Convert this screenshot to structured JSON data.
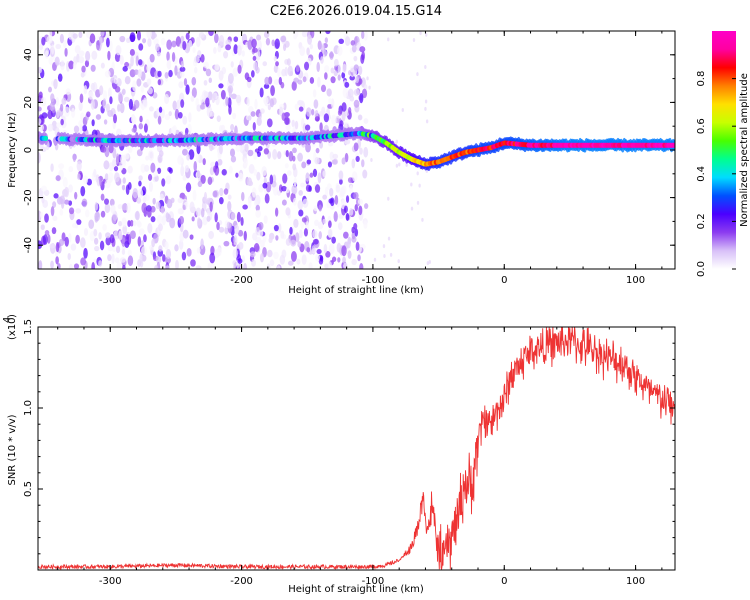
{
  "title": "C2E6.2026.019.04.15.G14",
  "chart_data": [
    {
      "type": "heatmap",
      "name": "spectrogram",
      "xlabel": "Height of straight line (km)",
      "ylabel": "Frequency (Hz)",
      "xlim": [
        -355,
        130
      ],
      "ylim": [
        -50,
        50
      ],
      "xticks": [
        -300,
        -200,
        -100,
        0,
        100
      ],
      "xtick_labels": [
        "-300",
        "-200",
        "-100",
        "0",
        "100"
      ],
      "yticks": [
        -40,
        -20,
        0,
        20,
        40
      ],
      "ytick_labels": [
        "-40",
        "-20",
        "0",
        "20",
        "40"
      ],
      "colorbar": {
        "label": "Normalized spectral amplitude",
        "range": [
          0,
          1
        ],
        "ticks": [
          0.0,
          0.2,
          0.4,
          0.6,
          0.8
        ],
        "tick_labels": [
          "0.0",
          "0.2",
          "0.4",
          "0.6",
          "0.8"
        ],
        "colors": [
          "#ffffff",
          "#d8c0f8",
          "#8c3cf0",
          "#4b00ff",
          "#0050ff",
          "#00dcff",
          "#00ff90",
          "#48ff00",
          "#c8ff00",
          "#ffe000",
          "#ff8000",
          "#ff0000",
          "#ff00a0",
          "#ff00c8"
        ]
      },
      "signal_track": {
        "description_points_x": [
          -355,
          -300,
          -250,
          -200,
          -150,
          -110,
          -100,
          -90,
          -80,
          -70,
          -60,
          -50,
          -40,
          -30,
          -20,
          -10,
          0,
          20,
          50,
          80,
          100,
          130
        ],
        "frequency_hz": [
          5,
          4,
          4,
          5,
          5,
          7,
          6,
          3,
          -1,
          -4,
          -6,
          -5,
          -3,
          -1,
          0,
          1,
          3,
          2,
          2,
          2,
          2,
          2
        ],
        "amplitude": [
          0.25,
          0.3,
          0.3,
          0.3,
          0.3,
          0.35,
          0.45,
          0.55,
          0.6,
          0.65,
          0.75,
          0.8,
          0.8,
          0.8,
          0.85,
          0.85,
          0.85,
          0.9,
          0.95,
          0.95,
          0.95,
          0.95
        ]
      },
      "noise_region_x": [
        -355,
        -105
      ]
    },
    {
      "type": "line",
      "name": "snr",
      "xlabel": "Height of straight line (km)",
      "ylabel": "SNR (10 * v/v)",
      "exponent_label": "(x10",
      "exponent_power": "4",
      "exponent_close": ")",
      "xlim": [
        -355,
        130
      ],
      "ylim": [
        0,
        1.5
      ],
      "xticks": [
        -300,
        -200,
        -100,
        0,
        100
      ],
      "xtick_labels": [
        "-300",
        "-200",
        "-100",
        "0",
        "100"
      ],
      "yticks": [
        0.5,
        1.0,
        1.5
      ],
      "ytick_labels": [
        "0.5",
        "1.0",
        "1.5"
      ],
      "line_color": "#ee3333",
      "series": [
        {
          "name": "SNR",
          "x": [
            -355,
            -300,
            -250,
            -200,
            -150,
            -110,
            -100,
            -90,
            -80,
            -75,
            -70,
            -65,
            -62,
            -58,
            -55,
            -52,
            -50,
            -45,
            -40,
            -35,
            -30,
            -25,
            -20,
            -15,
            -10,
            -5,
            0,
            5,
            10,
            20,
            30,
            40,
            50,
            60,
            70,
            80,
            90,
            100,
            110,
            120,
            130
          ],
          "y": [
            0.02,
            0.02,
            0.03,
            0.02,
            0.02,
            0.02,
            0.02,
            0.03,
            0.06,
            0.1,
            0.15,
            0.3,
            0.45,
            0.25,
            0.4,
            0.2,
            0.12,
            0.1,
            0.2,
            0.35,
            0.55,
            0.5,
            0.8,
            0.95,
            0.9,
            1.0,
            1.05,
            1.2,
            1.25,
            1.35,
            1.38,
            1.4,
            1.42,
            1.38,
            1.35,
            1.3,
            1.28,
            1.2,
            1.1,
            1.05,
            1.0
          ]
        }
      ]
    }
  ]
}
